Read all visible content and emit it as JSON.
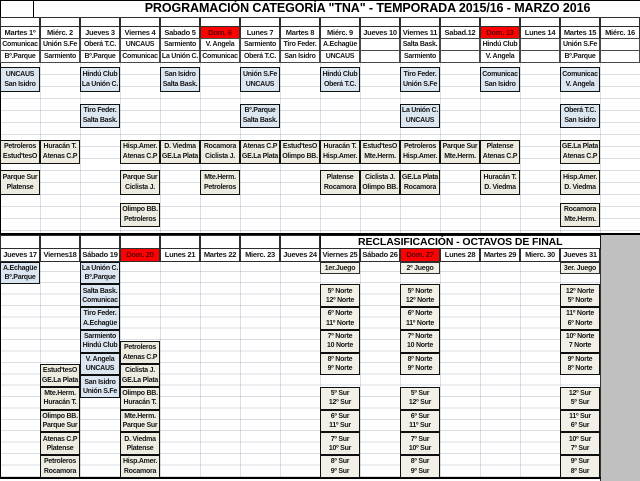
{
  "title": "PROGRAMACIÓN CATEGORÍA \"TNA\" - TEMPORADA 2015/16 - MARZO 2016",
  "colors": {
    "blue": "#dce6f1",
    "beige": "#eeece1",
    "cream": "#f2f0e6",
    "red_bg": "#ff0000",
    "red_text": "#5f0000",
    "gray": "#c0c0c0",
    "border": "#101010"
  },
  "top": {
    "headers": [
      {
        "label": "Martes 1º",
        "red": false
      },
      {
        "label": "Miérc. 2",
        "red": false
      },
      {
        "label": "Jueves 3",
        "red": false
      },
      {
        "label": "Viernes 4",
        "red": false
      },
      {
        "label": "Sabado 5",
        "red": false
      },
      {
        "label": "Dom. 6",
        "red": true
      },
      {
        "label": "Lunes 7",
        "red": false
      },
      {
        "label": "Martes 8",
        "red": false
      },
      {
        "label": "Miérc. 9",
        "red": false
      },
      {
        "label": "Jueves 10",
        "red": false
      },
      {
        "label": "Viernes 11",
        "red": false
      },
      {
        "label": "Sabad.12",
        "red": false
      },
      {
        "label": "Dom. 13",
        "red": true
      },
      {
        "label": "Lunes 14",
        "red": false
      },
      {
        "label": "Martes 15",
        "red": false
      },
      {
        "label": "Miérc. 16",
        "red": false
      }
    ],
    "slot1": [
      [
        "Comunicac",
        "Bº.Parque"
      ],
      [
        "Unión S.Fe",
        "Sarmiento"
      ],
      [
        "Oberá T.C.",
        "Bº.Parque"
      ],
      [
        "UNCAUS",
        "Comunicac"
      ],
      [
        "Sarmiento",
        "La Unión C."
      ],
      [
        "V. Angela",
        "Comunicac"
      ],
      [
        "Sarmiento",
        "Oberá T.C."
      ],
      [
        "Tiro Feder.",
        "San Isidro"
      ],
      [
        "A.Echagüe",
        "UNCAUS"
      ],
      null,
      [
        "Salta Bask.",
        "Sarmiento"
      ],
      null,
      [
        "Hindú Club",
        "V. Angela"
      ],
      null,
      [
        "Unión S.Fe",
        "Bº.Parque"
      ],
      null
    ],
    "boxes": [
      {
        "c": 0,
        "s": 2,
        "fill": "blue",
        "t": [
          "UNCAUS",
          "San Isidro"
        ]
      },
      {
        "c": 2,
        "s": 2,
        "fill": "blue",
        "t": [
          "Hindú Club",
          "La Unión C."
        ]
      },
      {
        "c": 4,
        "s": 2,
        "fill": "blue",
        "t": [
          "San Isidro",
          "Salta Bask."
        ]
      },
      {
        "c": 6,
        "s": 2,
        "fill": "blue",
        "t": [
          "Unión S.Fe",
          "UNCAUS"
        ]
      },
      {
        "c": 8,
        "s": 2,
        "fill": "blue",
        "t": [
          "Hindú Club",
          "Oberá T.C."
        ]
      },
      {
        "c": 10,
        "s": 2,
        "fill": "blue",
        "t": [
          "Tiro Feder.",
          "Unión S.Fe"
        ]
      },
      {
        "c": 12,
        "s": 2,
        "fill": "blue",
        "t": [
          "Comunicac",
          "San Isidro"
        ]
      },
      {
        "c": 14,
        "s": 2,
        "fill": "blue",
        "t": [
          "Comunicac",
          "V. Angela"
        ]
      },
      {
        "c": 2,
        "s": 3,
        "fill": "blue",
        "t": [
          "Tiro Feder.",
          "Salta Bask."
        ]
      },
      {
        "c": 6,
        "s": 3,
        "fill": "blue",
        "t": [
          "Bº.Parque",
          "Salta Bask."
        ]
      },
      {
        "c": 10,
        "s": 3,
        "fill": "blue",
        "t": [
          "La Unión C.",
          "UNCAUS"
        ]
      },
      {
        "c": 14,
        "s": 3,
        "fill": "blue",
        "t": [
          "Oberá T.C.",
          "San Isidro"
        ]
      },
      {
        "c": 0,
        "s": 4,
        "fill": "beige",
        "t": [
          "Petroleros",
          "Estud'tesO"
        ]
      },
      {
        "c": 1,
        "s": 4,
        "fill": "beige",
        "t": [
          "Huracán T.",
          "Atenas C.P"
        ]
      },
      {
        "c": 3,
        "s": 4,
        "fill": "beige",
        "t": [
          "Hisp.Amer.",
          "Atenas C.P"
        ]
      },
      {
        "c": 4,
        "s": 4,
        "fill": "beige",
        "t": [
          "D. Viedma",
          "GE.La Plata"
        ]
      },
      {
        "c": 5,
        "s": 4,
        "fill": "beige",
        "t": [
          "Rocamora",
          "Ciclista J."
        ]
      },
      {
        "c": 6,
        "s": 4,
        "fill": "beige",
        "t": [
          "Atenas C.P",
          "GE.La Plata"
        ]
      },
      {
        "c": 7,
        "s": 4,
        "fill": "beige",
        "t": [
          "Estud'tesO",
          "Olimpo BB."
        ]
      },
      {
        "c": 8,
        "s": 4,
        "fill": "beige",
        "t": [
          "Huracán T.",
          "Hisp.Amer."
        ]
      },
      {
        "c": 9,
        "s": 4,
        "fill": "beige",
        "t": [
          "Estud'tesO",
          "Mte.Herm."
        ]
      },
      {
        "c": 10,
        "s": 4,
        "fill": "beige",
        "t": [
          "Petroleros",
          "Hisp.Amer."
        ]
      },
      {
        "c": 11,
        "s": 4,
        "fill": "beige",
        "t": [
          "Parque Sur",
          "Mte.Herm."
        ]
      },
      {
        "c": 12,
        "s": 4,
        "fill": "beige",
        "t": [
          "Platense",
          "Atenas C.P"
        ]
      },
      {
        "c": 14,
        "s": 4,
        "fill": "beige",
        "t": [
          "GE.La Plata",
          "Atenas C.P"
        ]
      },
      {
        "c": 0,
        "s": 5,
        "fill": "beige",
        "t": [
          "Parque Sur",
          "Platense"
        ]
      },
      {
        "c": 3,
        "s": 5,
        "fill": "beige",
        "t": [
          "Parque Sur",
          "Ciclista J."
        ]
      },
      {
        "c": 5,
        "s": 5,
        "fill": "beige",
        "t": [
          "Mte.Herm.",
          "Petroleros"
        ]
      },
      {
        "c": 8,
        "s": 5,
        "fill": "beige",
        "t": [
          "Platense",
          "Rocamora"
        ]
      },
      {
        "c": 9,
        "s": 5,
        "fill": "beige",
        "t": [
          "Ciclista J.",
          "Olimpo BB."
        ]
      },
      {
        "c": 10,
        "s": 5,
        "fill": "beige",
        "t": [
          "GE.La Plata",
          "Rocamora"
        ]
      },
      {
        "c": 12,
        "s": 5,
        "fill": "beige",
        "t": [
          "Huracán T.",
          "D. Viedma"
        ]
      },
      {
        "c": 14,
        "s": 5,
        "fill": "beige",
        "t": [
          "Hisp.Amer.",
          "D. Viedma"
        ]
      },
      {
        "c": 3,
        "s": 6,
        "fill": "beige",
        "t": [
          "Olimpo BB.",
          "Petroleros"
        ]
      },
      {
        "c": 14,
        "s": 6,
        "fill": "beige",
        "t": [
          "Rocamora",
          "Mte.Herm."
        ]
      }
    ]
  },
  "bottom": {
    "title": "RECLASIFICACIÓN - OCTAVOS DE FINAL",
    "headers": [
      {
        "label": "Jueves 17",
        "red": false
      },
      {
        "label": "Viernes18",
        "red": false
      },
      {
        "label": "Sábado 19",
        "red": false
      },
      {
        "label": "Dom. 20",
        "red": true
      },
      {
        "label": "Lunes 21",
        "red": false
      },
      {
        "label": "Martes 22",
        "red": false
      },
      {
        "label": "Mierc. 23",
        "red": false
      },
      {
        "label": "Jueves 24",
        "red": false
      },
      {
        "label": "Viernes 25",
        "red": false
      },
      {
        "label": "Sábado 26",
        "red": false
      },
      {
        "label": "Dom. 27",
        "red": true
      },
      {
        "label": "Lunes 28",
        "red": false
      },
      {
        "label": "Martes 29",
        "red": false
      },
      {
        "label": "Mierc. 30",
        "red": false
      },
      {
        "label": "Jueves 31",
        "red": false
      }
    ],
    "juego": [
      {
        "c": 8,
        "label": "1er.Juego"
      },
      {
        "c": 10,
        "label": "2º Juego"
      },
      {
        "c": 14,
        "label": "3er. Juego"
      }
    ],
    "boxes": [
      {
        "c": 0,
        "r": 1,
        "fill": "blue",
        "t": [
          "A.Echagüe",
          "Bº.Parque"
        ]
      },
      {
        "c": 2,
        "r": 1,
        "fill": "blue",
        "t": [
          "La Unión C.",
          "Bº.Parque"
        ]
      },
      {
        "c": 2,
        "r": 3,
        "fill": "blue",
        "t": [
          "Salta Bask.",
          "Comunicac"
        ]
      },
      {
        "c": 2,
        "r": 5,
        "fill": "blue",
        "t": [
          "Tiro Feder.",
          "A.Echagüe"
        ]
      },
      {
        "c": 2,
        "r": 7,
        "fill": "blue",
        "t": [
          "Sarmiento",
          "Hindú Club"
        ]
      },
      {
        "c": 2,
        "r": 9,
        "fill": "blue",
        "t": [
          "V. Angela",
          "UNCAUS"
        ]
      },
      {
        "c": 2,
        "r": 11,
        "fill": "blue",
        "t": [
          "San Isidro",
          "Unión S.Fe"
        ]
      },
      {
        "c": 1,
        "r": 10,
        "fill": "beige",
        "t": [
          "Estud'tesO",
          "GE.La Plata"
        ]
      },
      {
        "c": 1,
        "r": 12,
        "fill": "beige",
        "t": [
          "Mte.Herm.",
          "Huracán T."
        ]
      },
      {
        "c": 1,
        "r": 14,
        "fill": "beige",
        "t": [
          "Olimpo BB.",
          "Parque Sur"
        ]
      },
      {
        "c": 1,
        "r": 16,
        "fill": "beige",
        "t": [
          "Atenas C.P",
          "Platense"
        ]
      },
      {
        "c": 1,
        "r": 18,
        "fill": "beige",
        "t": [
          "Petroleros",
          "Rocamora"
        ]
      },
      {
        "c": 3,
        "r": 8,
        "fill": "beige",
        "t": [
          "Petroleros",
          "Atenas C.P"
        ]
      },
      {
        "c": 3,
        "r": 10,
        "fill": "beige",
        "t": [
          "Ciclista J.",
          "GE.La Plata"
        ]
      },
      {
        "c": 3,
        "r": 12,
        "fill": "beige",
        "t": [
          "Olimpo BB.",
          "Huracán T."
        ]
      },
      {
        "c": 3,
        "r": 14,
        "fill": "beige",
        "t": [
          "Mte.Herm.",
          "Parque Sur"
        ]
      },
      {
        "c": 3,
        "r": 16,
        "fill": "beige",
        "t": [
          "D. Viedma",
          "Platense"
        ]
      },
      {
        "c": 3,
        "r": 18,
        "fill": "beige",
        "t": [
          "Hisp.Amer.",
          "Rocamora"
        ]
      },
      {
        "c": 8,
        "r": 3,
        "fill": "cream",
        "t": [
          "5º Norte",
          "12º Norte"
        ]
      },
      {
        "c": 8,
        "r": 5,
        "fill": "cream",
        "t": [
          "6º Norte",
          "11º Norte"
        ]
      },
      {
        "c": 8,
        "r": 7,
        "fill": "cream",
        "t": [
          "7º Norte",
          "10 Norte"
        ]
      },
      {
        "c": 8,
        "r": 9,
        "fill": "cream",
        "t": [
          "8º Norte",
          "9º Norte"
        ]
      },
      {
        "c": 8,
        "r": 12,
        "fill": "cream",
        "t": [
          "5º Sur",
          "12º Sur"
        ]
      },
      {
        "c": 8,
        "r": 14,
        "fill": "cream",
        "t": [
          "6º Sur",
          "11º Sur"
        ]
      },
      {
        "c": 8,
        "r": 16,
        "fill": "cream",
        "t": [
          "7º Sur",
          "10º Sur"
        ]
      },
      {
        "c": 8,
        "r": 18,
        "fill": "cream",
        "t": [
          "8º Sur",
          "9º Sur"
        ]
      },
      {
        "c": 10,
        "r": 3,
        "fill": "cream",
        "t": [
          "5º Norte",
          "12º Norte"
        ]
      },
      {
        "c": 10,
        "r": 5,
        "fill": "cream",
        "t": [
          "6º Norte",
          "11º Norte"
        ]
      },
      {
        "c": 10,
        "r": 7,
        "fill": "cream",
        "t": [
          "7º Norte",
          "10 Norte"
        ]
      },
      {
        "c": 10,
        "r": 9,
        "fill": "cream",
        "t": [
          "8º Norte",
          "9º Norte"
        ]
      },
      {
        "c": 10,
        "r": 12,
        "fill": "cream",
        "t": [
          "5º Sur",
          "12º Sur"
        ]
      },
      {
        "c": 10,
        "r": 14,
        "fill": "cream",
        "t": [
          "6º Sur",
          "11º Sur"
        ]
      },
      {
        "c": 10,
        "r": 16,
        "fill": "cream",
        "t": [
          "7º Sur",
          "10º Sur"
        ]
      },
      {
        "c": 10,
        "r": 18,
        "fill": "cream",
        "t": [
          "8º Sur",
          "9º Sur"
        ]
      },
      {
        "c": 14,
        "r": 3,
        "fill": "cream",
        "t": [
          "12º Norte",
          "5º Norte"
        ]
      },
      {
        "c": 14,
        "r": 5,
        "fill": "cream",
        "t": [
          "11º Norte",
          "6º Norte"
        ]
      },
      {
        "c": 14,
        "r": 7,
        "fill": "cream",
        "t": [
          "10º Norte",
          "7 Norte"
        ]
      },
      {
        "c": 14,
        "r": 9,
        "fill": "cream",
        "t": [
          "9º Norte",
          "8º Norte"
        ]
      },
      {
        "c": 14,
        "r": 12,
        "fill": "cream",
        "t": [
          "12º Sur",
          "5º Sur"
        ]
      },
      {
        "c": 14,
        "r": 14,
        "fill": "cream",
        "t": [
          "11º Sur",
          "6º Sur"
        ]
      },
      {
        "c": 14,
        "r": 16,
        "fill": "cream",
        "t": [
          "10º Sur",
          "7º Sur"
        ]
      },
      {
        "c": 14,
        "r": 18,
        "fill": "cream",
        "t": [
          "9º Sur",
          "8º Sur"
        ]
      }
    ]
  }
}
